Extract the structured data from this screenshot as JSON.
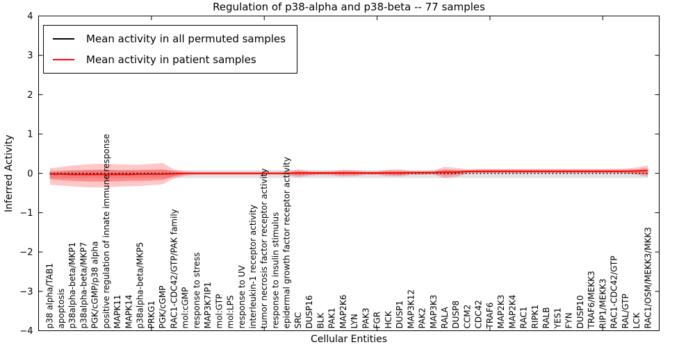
{
  "title": "Regulation of p38-alpha and p38-beta -- 77 samples",
  "legend": {
    "entries": [
      {
        "label": "Mean activity in all permuted samples",
        "color": "#000000"
      },
      {
        "label": "Mean activity in patient samples",
        "color": "#ff0000"
      }
    ]
  },
  "chart_data": {
    "type": "line",
    "title": "Regulation of p38-alpha and p38-beta -- 77 samples",
    "xlabel": "Cellular Entities",
    "ylabel": "Inferred Activity",
    "xlim": [
      0,
      55
    ],
    "ylim": [
      -4,
      4
    ],
    "yticks": [
      4,
      3,
      2,
      1,
      0,
      -1,
      -2,
      -3,
      -4
    ],
    "xticks_major": [
      10,
      20,
      30,
      40,
      50
    ],
    "grid": false,
    "legend_position": "upper left",
    "categories": [
      "p38 alpha/TAB1",
      "apoptosis",
      "p38alpha-beta/MKP1",
      "p38alpha-beta/MKP7",
      "PGK/cGMP/p38 alpha",
      "positive regulation of innate immune response",
      "MAPK11",
      "MAPK14",
      "p38alpha-beta/MKP5",
      "PRKG1",
      "PGK/cGMP",
      "RAC1-CDC42/GTP/PAK family",
      "mol:cGMP",
      "response to stress",
      "MAP3K7IP1",
      "mol:GTP",
      "mol:LPS",
      "response to UV",
      "interleukin-1 receptor activity",
      "tumor necrosis factor receptor activity",
      "response to insulin stimulus",
      "epidermal growth factor receptor activity",
      "SRC",
      "DUSP16",
      "BLK",
      "PAK1",
      "MAP2K6",
      "LYN",
      "PAK3",
      "FGR",
      "HCK",
      "DUSP1",
      "MAP3K12",
      "PAK2",
      "MAP3K3",
      "RALA",
      "DUSP8",
      "CCM2",
      "CDC42",
      "TRAF6",
      "MAP2K3",
      "MAP2K4",
      "RAC1",
      "RIPK1",
      "RALB",
      "YES1",
      "FYN",
      "DUSP10",
      "TRAF6/MEKK3",
      "RIP1/MEKK3",
      "RAC1-CDC42/GTP",
      "RAL/GTP",
      "LCK",
      "RAC1/OSM/MEKK3/MKK3"
    ],
    "series": [
      {
        "name": "mean-permuted-line",
        "label": "Mean activity in all permuted samples",
        "color": "#000000",
        "linestyle": "dotted",
        "width": 1.5,
        "value_const": 0.0
      },
      {
        "name": "mean-patient-line",
        "label": "Mean activity in patient samples",
        "color": "#ff0000",
        "linestyle": "solid",
        "width": 1.8,
        "values": [
          -0.02,
          -0.02,
          -0.03,
          -0.03,
          -0.03,
          -0.03,
          -0.03,
          -0.03,
          -0.02,
          -0.02,
          -0.02,
          -0.01,
          0.0,
          0.0,
          0.0,
          0.0,
          0.0,
          0.0,
          0.0,
          0.0,
          0.0,
          0.0,
          0.01,
          0.01,
          0.01,
          0.01,
          0.01,
          0.01,
          0.01,
          0.01,
          0.01,
          0.01,
          0.02,
          0.02,
          0.02,
          0.03,
          0.03,
          0.05,
          0.05,
          0.05,
          0.05,
          0.05,
          0.05,
          0.05,
          0.05,
          0.05,
          0.05,
          0.05,
          0.05,
          0.05,
          0.05,
          0.05,
          0.06,
          0.07
        ]
      }
    ],
    "bands": [
      {
        "name": "permuted-range-band",
        "fill": "rgba(0,0,0,0.11)",
        "hi_const": 0.08,
        "lo_const": -0.12
      },
      {
        "name": "patient-range-outer-band",
        "fill": "rgba(255,0,0,0.22)",
        "hi": [
          0.13,
          0.16,
          0.2,
          0.22,
          0.24,
          0.24,
          0.23,
          0.22,
          0.22,
          0.24,
          0.26,
          0.1,
          0.05,
          0.04,
          0.04,
          0.04,
          0.04,
          0.04,
          0.04,
          0.04,
          0.04,
          0.05,
          0.1,
          0.06,
          0.05,
          0.06,
          0.09,
          0.08,
          0.05,
          0.05,
          0.09,
          0.1,
          0.06,
          0.06,
          0.07,
          0.17,
          0.14,
          0.1,
          0.11,
          0.11,
          0.11,
          0.11,
          0.11,
          0.11,
          0.11,
          0.11,
          0.11,
          0.11,
          0.11,
          0.11,
          0.11,
          0.12,
          0.15,
          0.2
        ],
        "lo": [
          -0.29,
          -0.31,
          -0.33,
          -0.35,
          -0.36,
          -0.36,
          -0.34,
          -0.33,
          -0.32,
          -0.3,
          -0.28,
          -0.13,
          -0.06,
          -0.04,
          -0.04,
          -0.04,
          -0.04,
          -0.04,
          -0.04,
          -0.04,
          -0.04,
          -0.05,
          -0.1,
          -0.06,
          -0.04,
          -0.05,
          -0.08,
          -0.07,
          -0.04,
          -0.04,
          -0.07,
          -0.08,
          -0.04,
          -0.04,
          -0.03,
          -0.12,
          -0.09,
          0.0,
          0.01,
          0.01,
          0.01,
          0.01,
          0.01,
          0.01,
          0.01,
          0.01,
          0.01,
          0.01,
          0.01,
          0.01,
          0.01,
          0.0,
          -0.03,
          -0.09
        ]
      },
      {
        "name": "patient-range-inner-band",
        "fill": "rgba(255,0,0,0.30)",
        "hi": [
          0.04,
          0.05,
          0.07,
          0.08,
          0.09,
          0.09,
          0.08,
          0.08,
          0.08,
          0.09,
          0.1,
          0.05,
          0.02,
          0.02,
          0.02,
          0.02,
          0.02,
          0.02,
          0.02,
          0.02,
          0.02,
          0.02,
          0.05,
          0.03,
          0.03,
          0.03,
          0.05,
          0.04,
          0.03,
          0.03,
          0.05,
          0.05,
          0.04,
          0.04,
          0.04,
          0.1,
          0.08,
          0.08,
          0.09,
          0.09,
          0.09,
          0.09,
          0.09,
          0.09,
          0.09,
          0.09,
          0.09,
          0.09,
          0.09,
          0.09,
          0.09,
          0.09,
          0.1,
          0.13
        ],
        "lo": [
          -0.15,
          -0.17,
          -0.19,
          -0.2,
          -0.21,
          -0.21,
          -0.2,
          -0.19,
          -0.19,
          -0.18,
          -0.17,
          -0.07,
          -0.03,
          -0.02,
          -0.02,
          -0.02,
          -0.02,
          -0.02,
          -0.02,
          -0.02,
          -0.02,
          -0.02,
          -0.05,
          -0.03,
          -0.02,
          -0.02,
          -0.04,
          -0.03,
          -0.02,
          -0.02,
          -0.03,
          -0.04,
          -0.02,
          -0.02,
          -0.01,
          -0.05,
          -0.03,
          0.02,
          0.02,
          0.02,
          0.02,
          0.02,
          0.02,
          0.02,
          0.02,
          0.02,
          0.02,
          0.02,
          0.02,
          0.02,
          0.02,
          0.02,
          0.0,
          -0.03
        ]
      }
    ],
    "colors": {
      "frame": "#000000",
      "text": "#000000",
      "patient_line": "#ff0000",
      "permuted_line": "#000000"
    }
  }
}
